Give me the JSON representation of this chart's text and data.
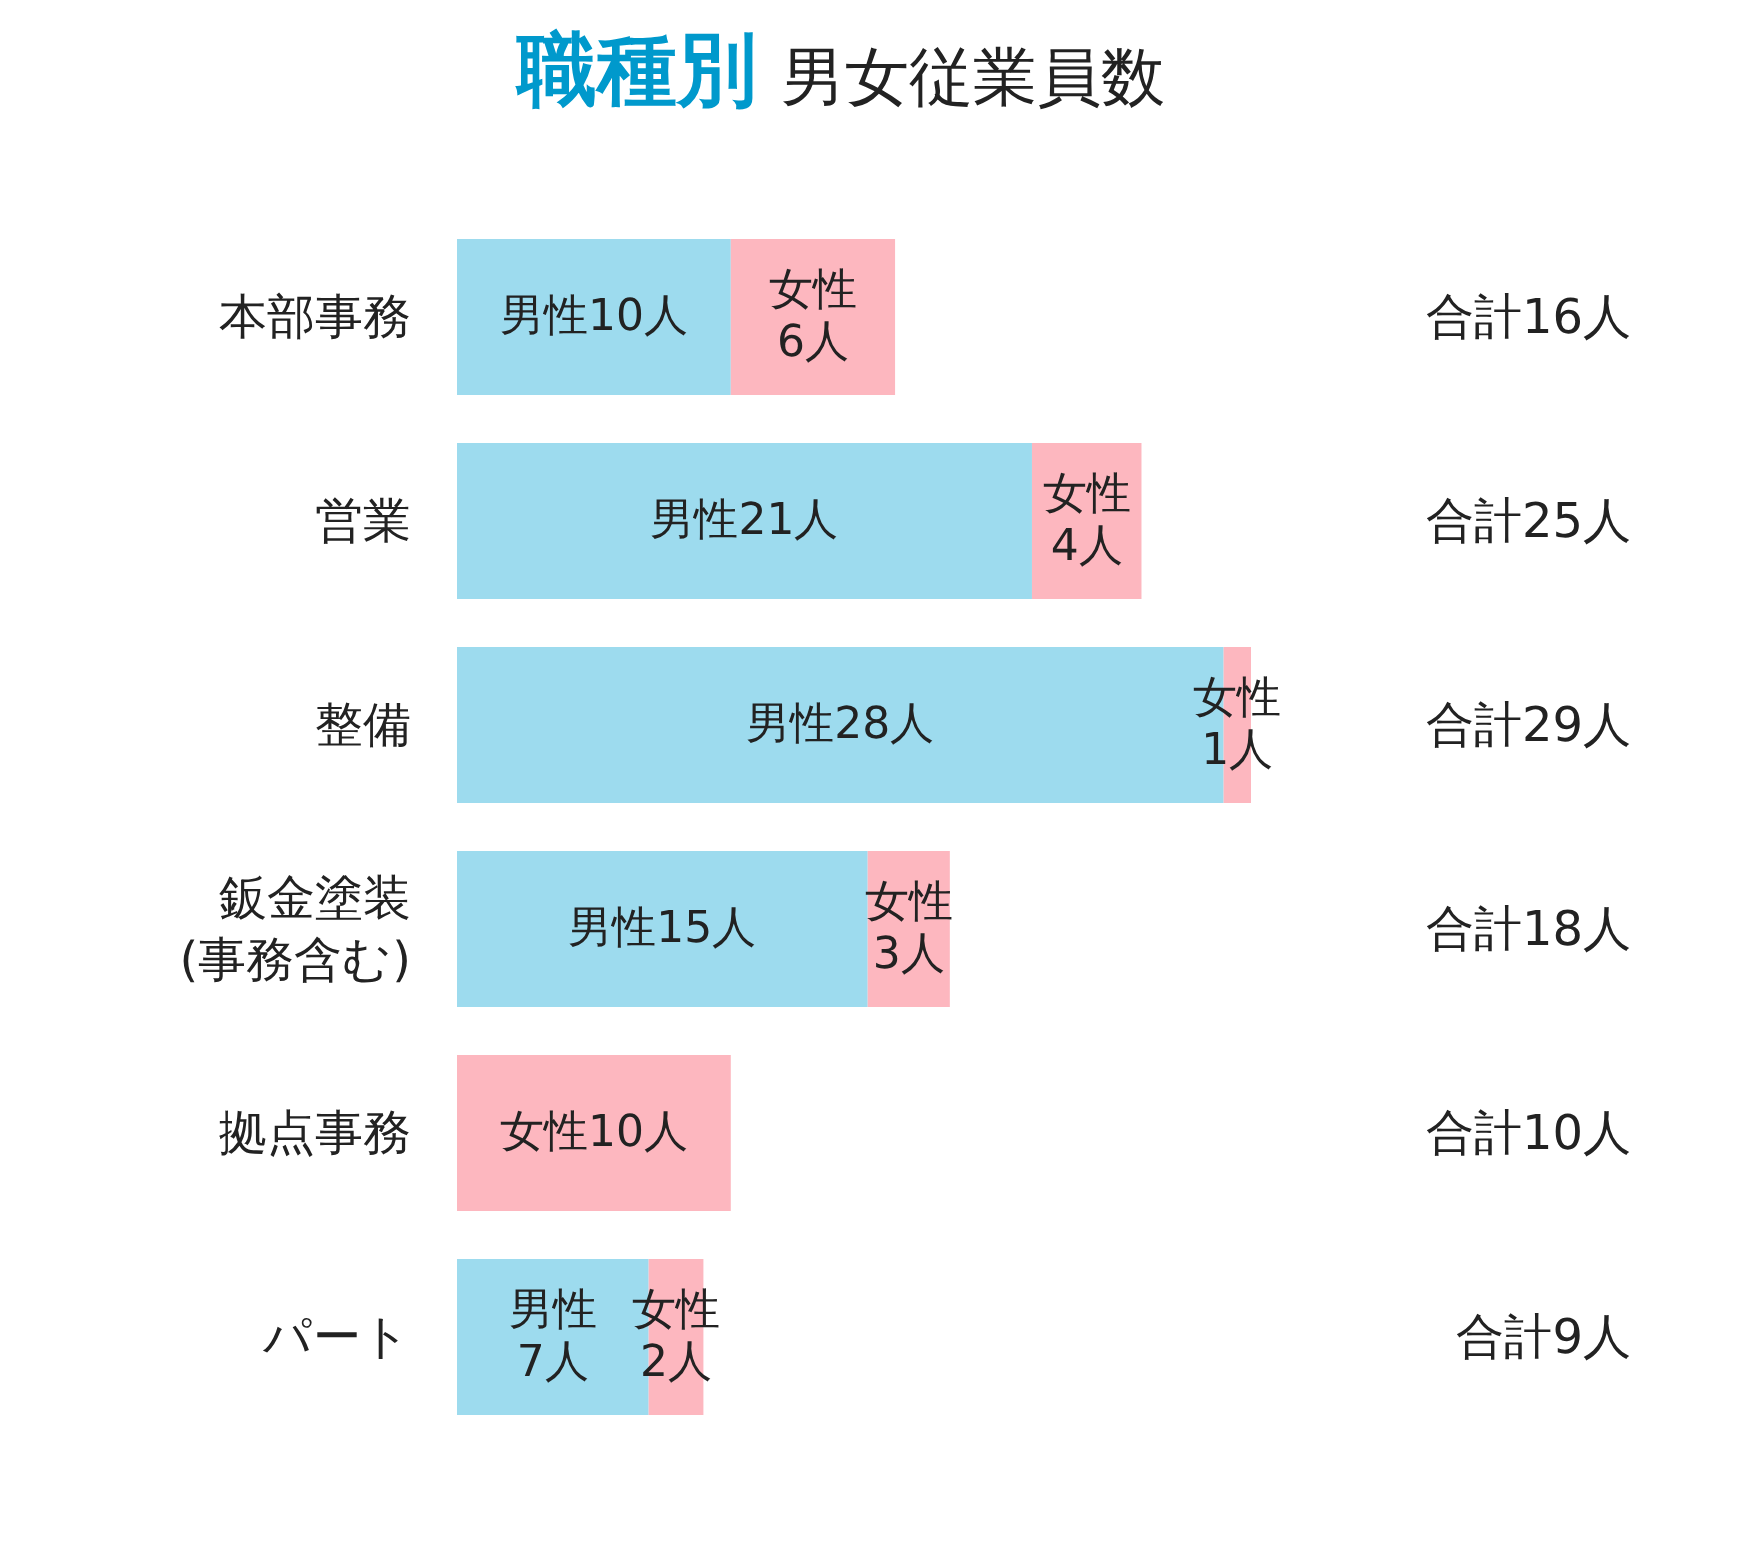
{
  "chart_data": {
    "type": "bar",
    "orientation": "horizontal",
    "stacked": true,
    "title": "職種別",
    "subtitle": "男女従業員数",
    "categories": [
      "本部事務",
      "営業",
      "整備",
      "鈑金塗装\n(事務含む)",
      "拠点事務",
      "パート"
    ],
    "series": [
      {
        "color": "#9ddbee",
        "values": [
          10,
          21,
          28,
          15,
          null,
          7
        ],
        "value_labels": [
          "男性10人",
          "男性21人",
          "男性28人",
          "男性15人",
          null,
          "男性\n7人"
        ]
      },
      {
        "color": "#fdb7bf",
        "values": [
          6,
          4,
          1,
          3,
          10,
          2
        ],
        "value_labels": [
          "女性\n6人",
          "女性\n4人",
          "女性\n1人",
          "女性\n3人",
          "女性10人",
          "女性\n2人"
        ]
      }
    ],
    "annotations": [
      "合計16人",
      "合計25人",
      "合計29人",
      "合計18人",
      "合計10人",
      "合計9人"
    ]
  }
}
